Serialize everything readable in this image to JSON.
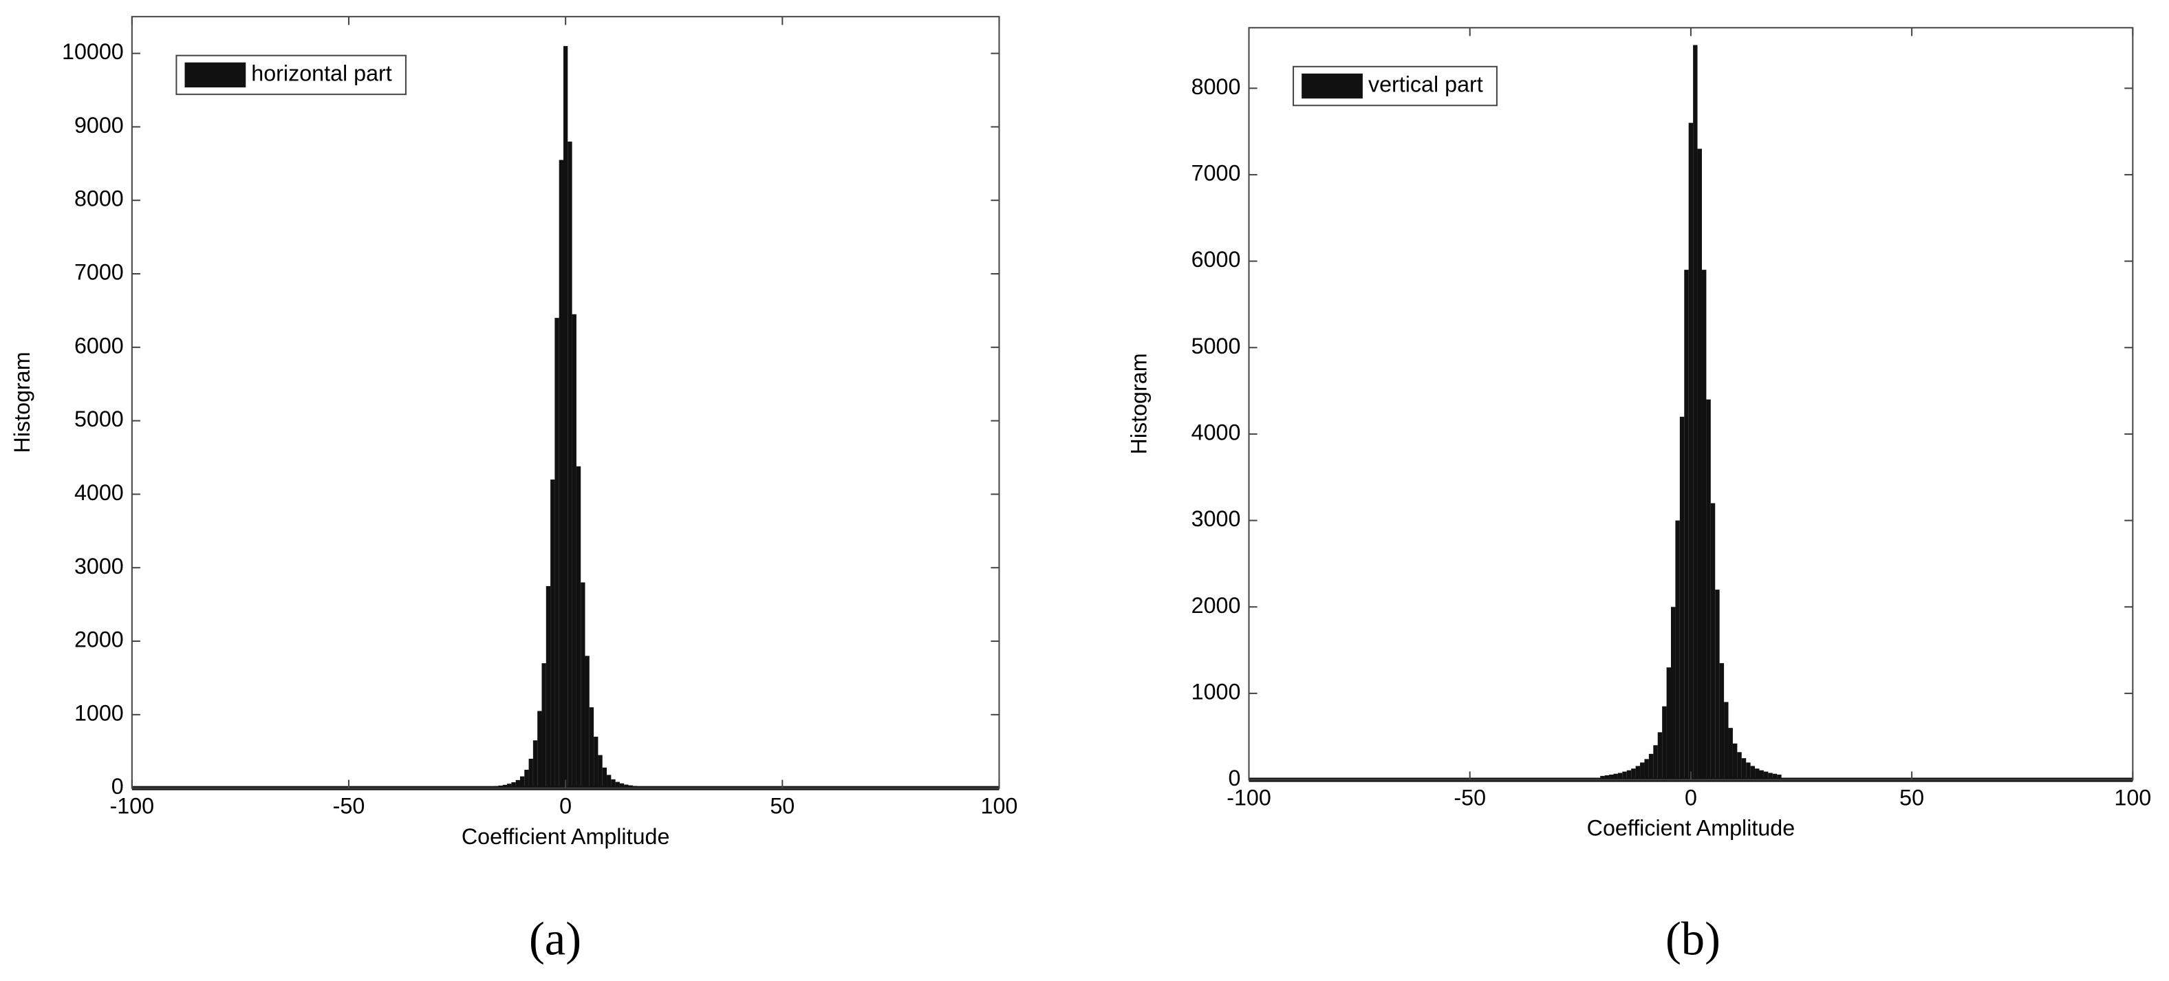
{
  "chart_data": [
    {
      "type": "histogram",
      "caption": "(a)",
      "xlabel": "Coefficient Amplitude",
      "ylabel": "Histogram",
      "xlim": [
        -100,
        100
      ],
      "xticks": [
        -100,
        -50,
        0,
        50,
        100
      ],
      "ylim": [
        0,
        10500
      ],
      "yticks": [
        0,
        1000,
        2000,
        3000,
        4000,
        5000,
        6000,
        7000,
        8000,
        9000,
        10000
      ],
      "grid": false,
      "legend": "upper left",
      "bins": [
        -20.5,
        -19.5,
        -18.5,
        -17.5,
        -16.5,
        -15.5,
        -14.5,
        -13.5,
        -12.5,
        -11.5,
        -10.5,
        -9.5,
        -8.5,
        -7.5,
        -6.5,
        -5.5,
        -4.5,
        -3.5,
        -2.5,
        -1.5,
        -0.5,
        0.5,
        1.5,
        2.5,
        3.5,
        4.5,
        5.5,
        6.5,
        7.5,
        8.5,
        9.5,
        10.5,
        11.5,
        12.5,
        13.5,
        14.5,
        15.5,
        16.5,
        17.5,
        18.5,
        19.5,
        20.5
      ],
      "series": [
        {
          "name": "horizontal part",
          "color": "#111111",
          "values": [
            12,
            15,
            18,
            22,
            28,
            35,
            45,
            60,
            80,
            110,
            160,
            250,
            400,
            650,
            1050,
            1700,
            2750,
            4200,
            6400,
            8550,
            10100,
            8800,
            6450,
            4380,
            2800,
            1800,
            1100,
            700,
            450,
            280,
            180,
            120,
            85,
            65,
            48,
            38,
            30,
            24,
            20,
            16,
            13
          ]
        }
      ]
    },
    {
      "type": "histogram",
      "caption": "(b)",
      "xlabel": "Coefficient Amplitude",
      "ylabel": "Histogram",
      "xlim": [
        -100,
        100
      ],
      "xticks": [
        -100,
        -50,
        0,
        50,
        100
      ],
      "ylim": [
        0,
        8700
      ],
      "yticks": [
        0,
        1000,
        2000,
        3000,
        4000,
        5000,
        6000,
        7000,
        8000
      ],
      "grid": false,
      "legend": "upper left",
      "bins": [
        -20.5,
        -19.5,
        -18.5,
        -17.5,
        -16.5,
        -15.5,
        -14.5,
        -13.5,
        -12.5,
        -11.5,
        -10.5,
        -9.5,
        -8.5,
        -7.5,
        -6.5,
        -5.5,
        -4.5,
        -3.5,
        -2.5,
        -1.5,
        -0.5,
        0.5,
        1.5,
        2.5,
        3.5,
        4.5,
        5.5,
        6.5,
        7.5,
        8.5,
        9.5,
        10.5,
        11.5,
        12.5,
        13.5,
        14.5,
        15.5,
        16.5,
        17.5,
        18.5,
        19.5,
        20.5
      ],
      "series": [
        {
          "name": "vertical part",
          "color": "#111111",
          "values": [
            45,
            52,
            60,
            70,
            80,
            95,
            110,
            130,
            160,
            200,
            240,
            300,
            400,
            550,
            850,
            1300,
            2000,
            3000,
            4200,
            5900,
            7600,
            8500,
            7300,
            5900,
            4400,
            3200,
            2200,
            1350,
            900,
            600,
            420,
            320,
            250,
            200,
            160,
            130,
            110,
            95,
            80,
            70,
            60
          ]
        }
      ]
    }
  ]
}
